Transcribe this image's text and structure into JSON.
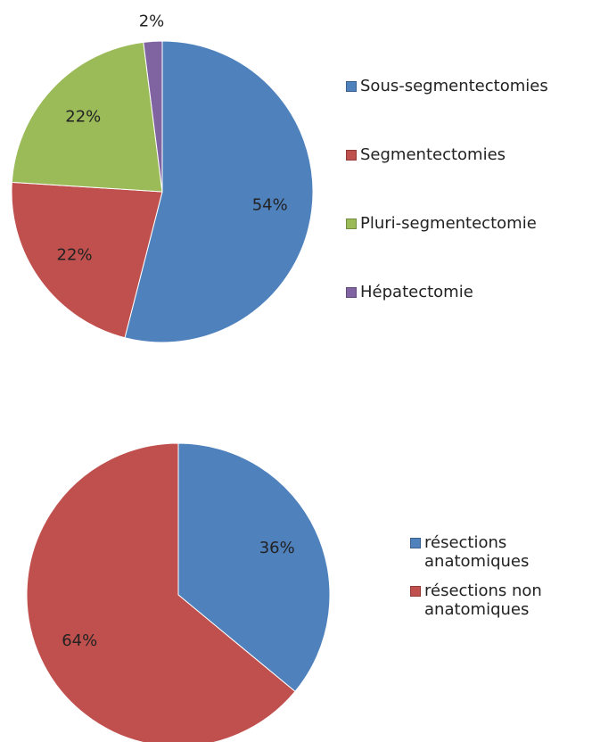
{
  "chart_data": [
    {
      "type": "pie",
      "categories": [
        "Sous-segmentectomies",
        "Segmentectomies",
        "Pluri-segmentectomie",
        "Hépatectomie"
      ],
      "values": [
        54,
        22,
        22,
        2
      ],
      "value_labels": [
        "54%",
        "22%",
        "22%",
        "2%"
      ],
      "colors": [
        "#4f81bd",
        "#c0504d",
        "#9bbb59",
        "#8064a2"
      ]
    },
    {
      "type": "pie",
      "categories": [
        "résections anatomiques",
        "résections non anatomiques"
      ],
      "values": [
        36,
        64
      ],
      "value_labels": [
        "36%",
        "64%"
      ],
      "colors": [
        "#4f81bd",
        "#c0504d"
      ]
    }
  ]
}
